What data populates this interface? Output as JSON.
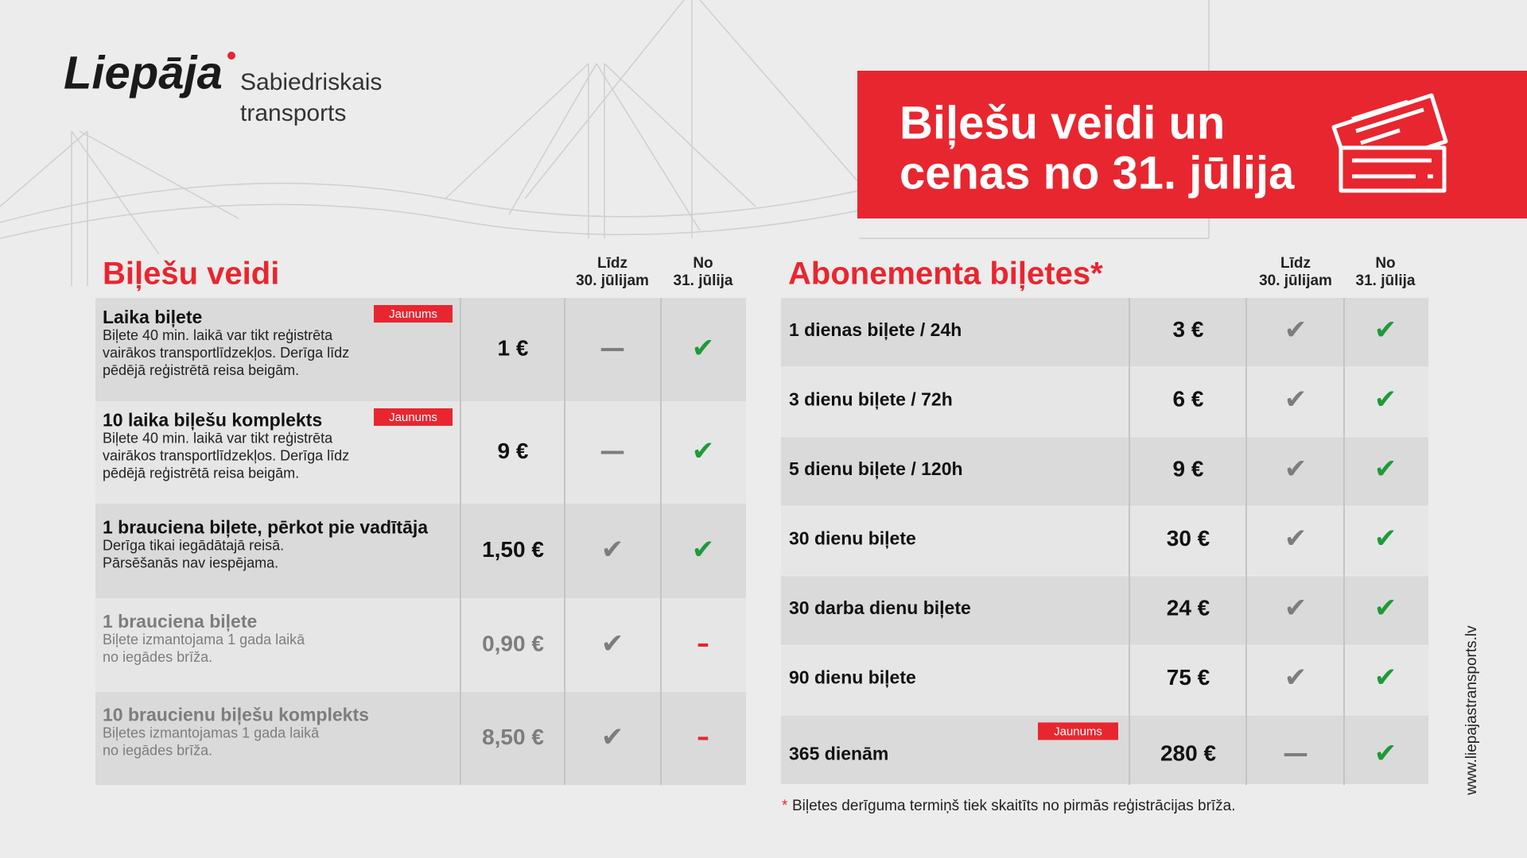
{
  "header": {
    "logo": "Liepāja",
    "subtitle_lines": [
      "Sabiedriskais",
      "transports"
    ]
  },
  "banner": {
    "title_lines": [
      "Biļešu veidi un",
      "cenas no 31. jūlija"
    ]
  },
  "ticket_types": {
    "heading": "Biļešu veidi",
    "columns": [
      [
        "Līdz",
        "30. jūlijam"
      ],
      [
        "No",
        "31. jūlija"
      ]
    ],
    "rows": [
      {
        "badge": "Jaunums",
        "name": "Laika biļete",
        "description": [
          "Biļete 40 min. laikā var tikt reģistrēta",
          "vairākos transportlīdzekļos. Derīga līdz",
          "pēdējā reģistrētā reisa beigām."
        ],
        "price": "1 €",
        "until_jul30": "—",
        "from_jul31": "✔"
      },
      {
        "badge": "Jaunums",
        "name": "10 laika biļešu komplekts",
        "description": [
          "Biļete 40 min. laikā var tikt reģistrēta",
          "vairākos transportlīdzekļos. Derīga līdz",
          "pēdējā reģistrētā reisa beigām."
        ],
        "price": "9 €",
        "until_jul30": "—",
        "from_jul31": "✔"
      },
      {
        "name": "1 brauciena biļete, pērkot pie vadītāja",
        "description": [
          "Derīga tikai iegādātajā reisā.",
          "Pārsēšanās nav iespējama."
        ],
        "price": "1,50 €",
        "until_jul30": "✔",
        "from_jul31": "✔"
      },
      {
        "name": "1 brauciena biļete",
        "description": [
          "Biļete izmantojama 1 gada laikā",
          "no iegādes brīža."
        ],
        "price": "0,90 €",
        "until_jul30": "✔",
        "from_jul31": "–"
      },
      {
        "name": "10 braucienu biļešu komplekts",
        "description": [
          "Biļetes izmantojamas 1 gada laikā",
          "no iegādes brīža."
        ],
        "price": "8,50 €",
        "until_jul30": "✔",
        "from_jul31": "–"
      }
    ]
  },
  "subscriptions": {
    "heading": "Abonementa biļetes*",
    "columns": [
      [
        "Līdz",
        "30. jūlijam"
      ],
      [
        "No",
        "31. jūlija"
      ]
    ],
    "rows": [
      {
        "name": "1 dienas biļete / 24h",
        "price": "3 €",
        "until_jul30": "✔",
        "from_jul31": "✔"
      },
      {
        "name": "3 dienu biļete / 72h",
        "price": "6 €",
        "until_jul30": "✔",
        "from_jul31": "✔"
      },
      {
        "name": "5 dienu biļete / 120h",
        "price": "9 €",
        "until_jul30": "✔",
        "from_jul31": "✔"
      },
      {
        "name": "30 dienu biļete",
        "price": "30 €",
        "until_jul30": "✔",
        "from_jul31": "✔"
      },
      {
        "name": "30 darba dienu biļete",
        "price": "24 €",
        "until_jul30": "✔",
        "from_jul31": "✔"
      },
      {
        "name": "90 dienu biļete",
        "price": "75 €",
        "until_jul30": "✔",
        "from_jul31": "✔"
      },
      {
        "badge": "Jaunums",
        "name": "365 dienām",
        "price": "280 €",
        "until_jul30": "—",
        "from_jul31": "✔"
      }
    ],
    "footnote": {
      "mark": "*",
      "text": "Biļetes derīguma termiņš tiek skaitīts no pirmās reģistrācijas brīža."
    }
  },
  "website": "www.liepajastransports.lv"
}
